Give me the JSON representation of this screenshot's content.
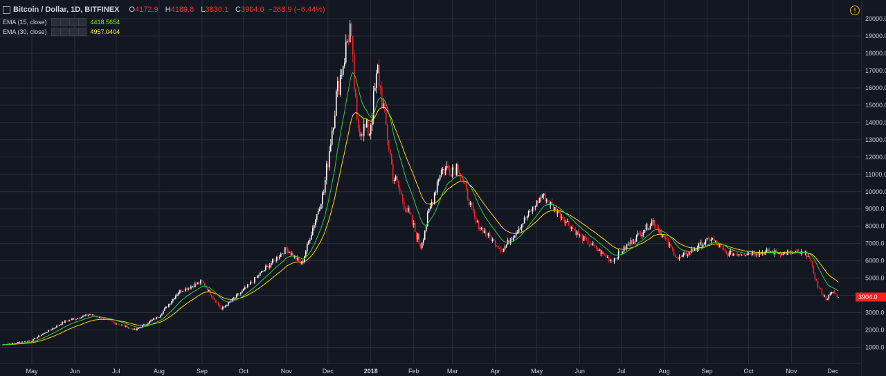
{
  "header": {
    "symbol": "Bitcoin / Dollar, 1D, BITFINEX",
    "open_label": "O",
    "open": "4172.9",
    "high_label": "H",
    "high": "4189.8",
    "low_label": "L",
    "low": "3830.1",
    "close_label": "C",
    "close": "3904.0",
    "change": "−268.9 (−6.44%)"
  },
  "indicators": [
    {
      "label": "EMA (15, close)",
      "value": "4418.5654",
      "color": "#7cfc00"
    },
    {
      "label": "EMA (30, close)",
      "value": "4957.0404",
      "color": "#ffff33"
    }
  ],
  "price_badge": "3904.0",
  "icons": [
    "chevron-down-icon",
    "settings-icon",
    "warning-icon"
  ],
  "colors": {
    "background": "#131722",
    "grid": "#2a2e39",
    "up": "#ffffff",
    "down": "#ff1f1f",
    "ema15": "#2ecc40",
    "ema30": "#ffd700",
    "badge": "#ff1f1f"
  },
  "chart_data": {
    "type": "line",
    "title": "Bitcoin / Dollar, 1D, BITFINEX",
    "ylim": [
      300,
      20500
    ],
    "y_ticks": [
      "1000.0",
      "2000.0",
      "3000.0",
      "4000.0",
      "5000.0",
      "6000.0",
      "7000.0",
      "8000.0",
      "9000.0",
      "10000.0",
      "11000.0",
      "12000.0",
      "13000.0",
      "14000.0",
      "15000.0",
      "16000.0",
      "17000.0",
      "18000.0",
      "19000.0",
      "20000.0"
    ],
    "x_ticks": [
      "May",
      "Jun",
      "Jul",
      "Aug",
      "Sep",
      "Oct",
      "Nov",
      "Dec",
      "2018",
      "Feb",
      "Mar",
      "Apr",
      "May",
      "Jun",
      "Jul",
      "Aug",
      "Sep",
      "Oct",
      "Nov",
      "Dec"
    ],
    "x_start": "2017-04-10",
    "grid": true,
    "series": [
      {
        "name": "Bitcoin / Dollar",
        "key_points": [
          [
            "2017-04-10",
            1150
          ],
          [
            "2017-05-01",
            1400
          ],
          [
            "2017-05-25",
            2500
          ],
          [
            "2017-06-12",
            2900
          ],
          [
            "2017-07-15",
            2000
          ],
          [
            "2017-08-01",
            2800
          ],
          [
            "2017-08-15",
            4200
          ],
          [
            "2017-09-01",
            4800
          ],
          [
            "2017-09-15",
            3200
          ],
          [
            "2017-10-01",
            4300
          ],
          [
            "2017-10-20",
            5800
          ],
          [
            "2017-11-01",
            6700
          ],
          [
            "2017-11-12",
            5800
          ],
          [
            "2017-11-28",
            10000
          ],
          [
            "2017-12-07",
            15500
          ],
          [
            "2017-12-17",
            19500
          ],
          [
            "2017-12-22",
            13800
          ],
          [
            "2017-12-31",
            13500
          ],
          [
            "2018-01-06",
            17000
          ],
          [
            "2018-01-17",
            11000
          ],
          [
            "2018-02-06",
            6900
          ],
          [
            "2018-02-20",
            11200
          ],
          [
            "2018-03-05",
            11500
          ],
          [
            "2018-03-18",
            8200
          ],
          [
            "2018-04-06",
            6600
          ],
          [
            "2018-05-05",
            9800
          ],
          [
            "2018-05-31",
            7500
          ],
          [
            "2018-06-24",
            6000
          ],
          [
            "2018-07-24",
            8300
          ],
          [
            "2018-08-11",
            6100
          ],
          [
            "2018-09-04",
            7300
          ],
          [
            "2018-09-15",
            6400
          ],
          [
            "2018-10-15",
            6500
          ],
          [
            "2018-11-13",
            6400
          ],
          [
            "2018-11-20",
            4500
          ],
          [
            "2018-11-26",
            3800
          ],
          [
            "2018-12-01",
            4200
          ],
          [
            "2018-12-05",
            3904
          ]
        ]
      },
      {
        "name": "EMA (15, close)",
        "last": 4418.5654
      },
      {
        "name": "EMA (30, close)",
        "last": 4957.0404
      }
    ]
  }
}
